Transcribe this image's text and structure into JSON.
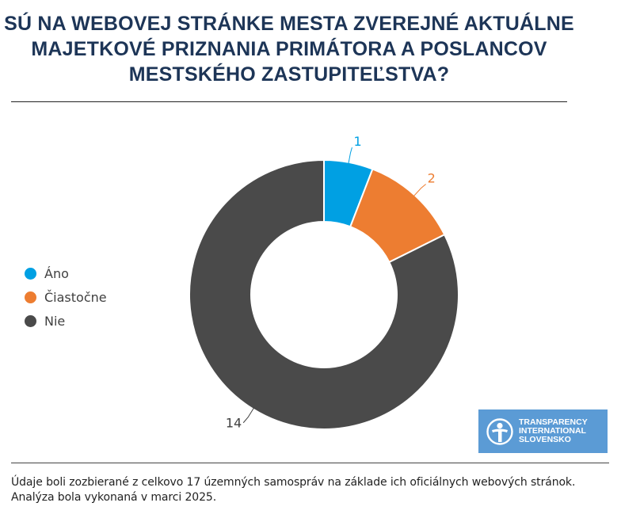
{
  "title": {
    "line1": "SÚ NA WEBOVEJ STRÁNKE MESTA ZVEREJNÉ AKTUÁLNE",
    "line2": "MAJETKOVÉ PRIZNANIA PRIMÁTORA A POSLANCOV",
    "line3": "MESTSKÉHO ZASTUPITEĽSTVA?"
  },
  "chart_data": {
    "type": "pie",
    "donut": true,
    "categories": [
      "Áno",
      "Čiastočne",
      "Nie"
    ],
    "values": [
      1,
      2,
      14
    ],
    "colors": [
      "#00a0e3",
      "#ed7d31",
      "#4a4a4a"
    ],
    "data_labels": [
      "1",
      "2",
      "14"
    ],
    "legend_position": "left"
  },
  "logo": {
    "line1": "TRANSPARENCY",
    "line2": "INTERNATIONAL",
    "line3": "SLOVENSKO",
    "icon": "transparency-globe-icon"
  },
  "footnote": {
    "line1": "Údaje boli zozbierané z celkovo 17 územných samospráv na základe ich oficiálnych webových stránok.",
    "line2": "Analýza bola vykonaná v marci 2025."
  }
}
